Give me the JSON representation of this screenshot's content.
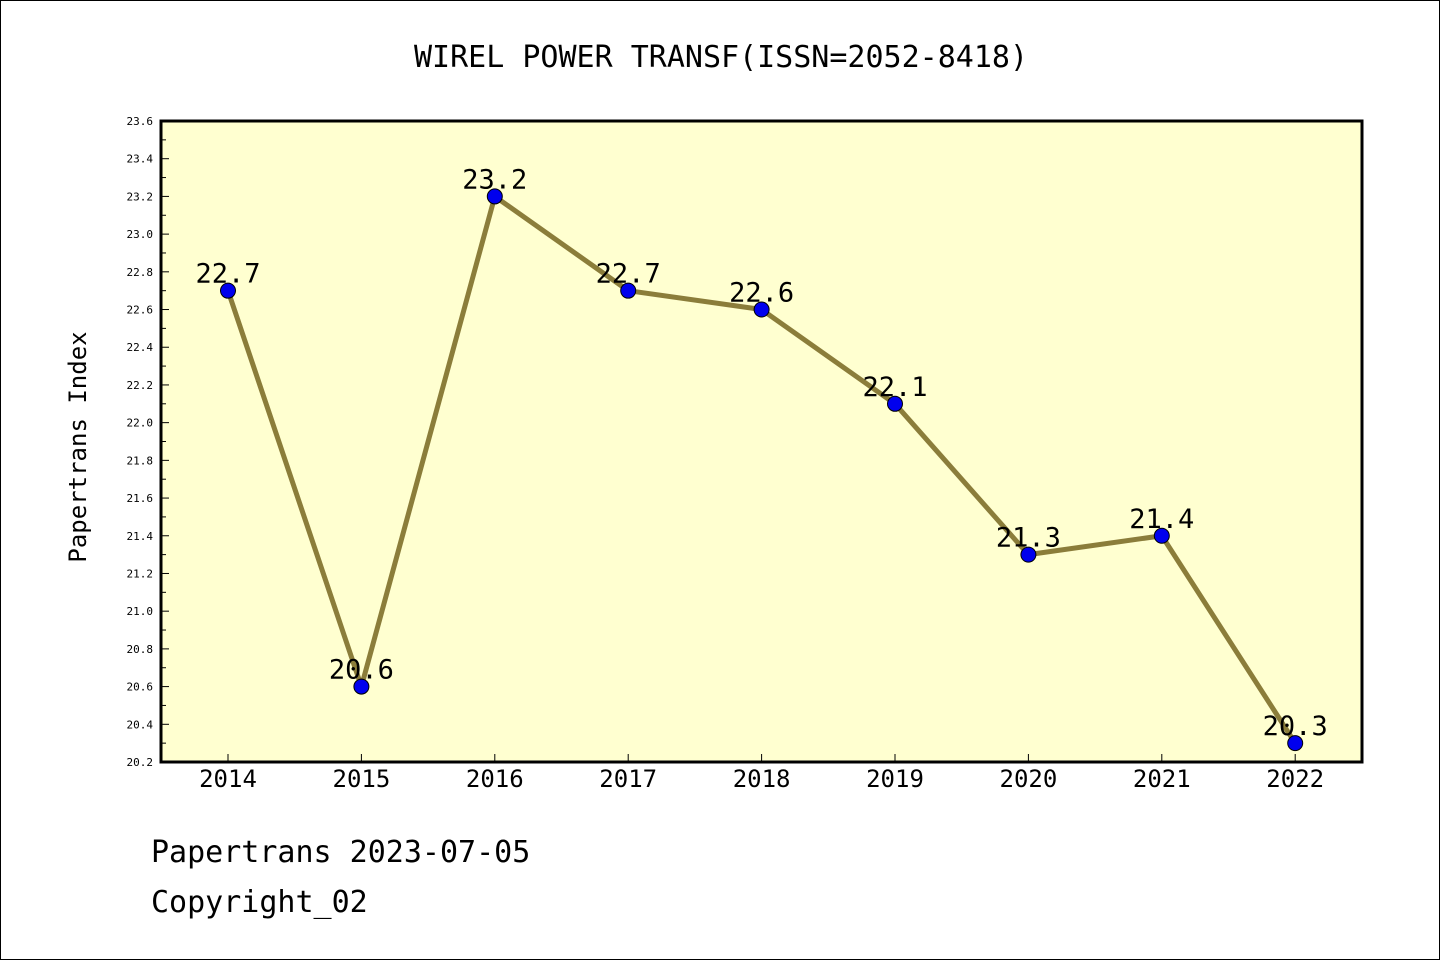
{
  "chart_data": {
    "type": "line",
    "title": "WIREL POWER TRANSF(ISSN=2052-8418)",
    "xlabel": "",
    "ylabel": "Papertrans Index",
    "categories": [
      "2014",
      "2015",
      "2016",
      "2017",
      "2018",
      "2019",
      "2020",
      "2021",
      "2022"
    ],
    "values": [
      22.7,
      20.6,
      23.2,
      22.7,
      22.6,
      22.1,
      21.3,
      21.4,
      20.3
    ],
    "data_labels": [
      "22.7",
      "20.6",
      "23.2",
      "22.7",
      "22.6",
      "22.1",
      "21.3",
      "21.4",
      "20.3"
    ],
    "ylim": [
      20.2,
      23.6
    ],
    "yticks": [
      "20.2",
      "20.4",
      "20.6",
      "20.8",
      "21.0",
      "21.2",
      "21.4",
      "21.6",
      "21.8",
      "22.0",
      "22.2",
      "22.4",
      "22.6",
      "22.8",
      "23.0",
      "23.2",
      "23.4",
      "23.6"
    ],
    "grid": false,
    "legend": "none",
    "colors": {
      "plot_background": "#ffffd0",
      "line": "#8b7d3a",
      "marker": "#0000ee",
      "frame": "#000000"
    }
  },
  "footer": {
    "date_line": "Papertrans 2023-07-05",
    "copyright": "Copyright_02"
  }
}
